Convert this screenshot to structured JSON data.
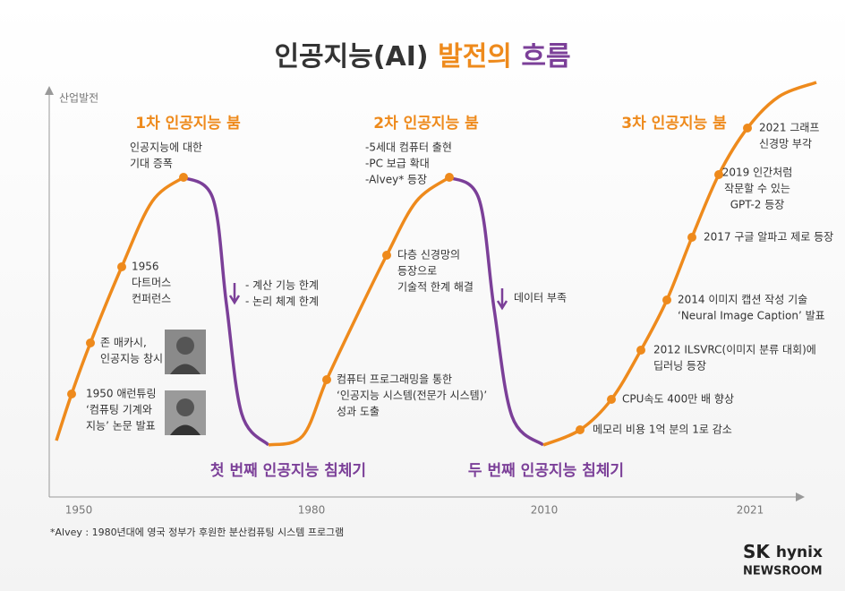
{
  "title": {
    "parts": [
      "인공지능(AI)",
      "발전의",
      "흐름"
    ]
  },
  "y_axis_label": "산업발전",
  "x_axis_labels": [
    "1950",
    "1980",
    "2010",
    "2021"
  ],
  "booms": [
    "1차 인공지능 붐",
    "2차 인공지능 붐",
    "3차 인공지능 붐"
  ],
  "winters": [
    "첫 번째 인공지능 침체기",
    "두 번째 인공지능 침체기"
  ],
  "boom_notes": [
    [
      "인공지능에 대한",
      "기대 증폭"
    ],
    [
      "-5세대 컴퓨터 출현",
      "-PC 보급 확대",
      "-Alvey* 등장"
    ]
  ],
  "decline_notes": [
    [
      "- 계산 기능 한계",
      "- 논리 체계 한계"
    ],
    [
      "데이터 부족"
    ]
  ],
  "events": [
    [
      "1950 애런튜링",
      "‘컴퓨팅 기계와",
      "지능’ 논문 발표"
    ],
    [
      "존 매카시,",
      "인공지능 창시"
    ],
    [
      "1956",
      "다트머스",
      "컨퍼런스"
    ],
    [
      "컴퓨터 프로그래밍을 통한",
      "‘인공지능 시스템(전문가 시스템)’",
      "성과 도출"
    ],
    [
      "다층 신경망의",
      "등장으로",
      "기술적 한계 해결"
    ],
    [
      "메모리 비용 1억 분의 1로 감소"
    ],
    [
      "CPU속도 400만 배 향상"
    ],
    [
      "2012 ILSVRC(이미지 분류 대회)에",
      "딥러닝 등장"
    ],
    [
      "2014 이미지 캡션 작성 기술",
      "‘Neural Image Caption’ 발표"
    ],
    [
      "2017 구글 알파고 제로 등장"
    ],
    [
      "2019 인간처럼",
      "작문할 수 있는",
      "GPT-2 등장"
    ],
    [
      "2021 그래프",
      "신경망 부각"
    ]
  ],
  "footnote": "*Alvey : 1980년대에 영국 정부가 후원한 분산컴퓨팅 시스템 프로그램",
  "logo": {
    "brand": [
      "SK",
      "hynix"
    ],
    "sub": "NEWSROOM"
  }
}
